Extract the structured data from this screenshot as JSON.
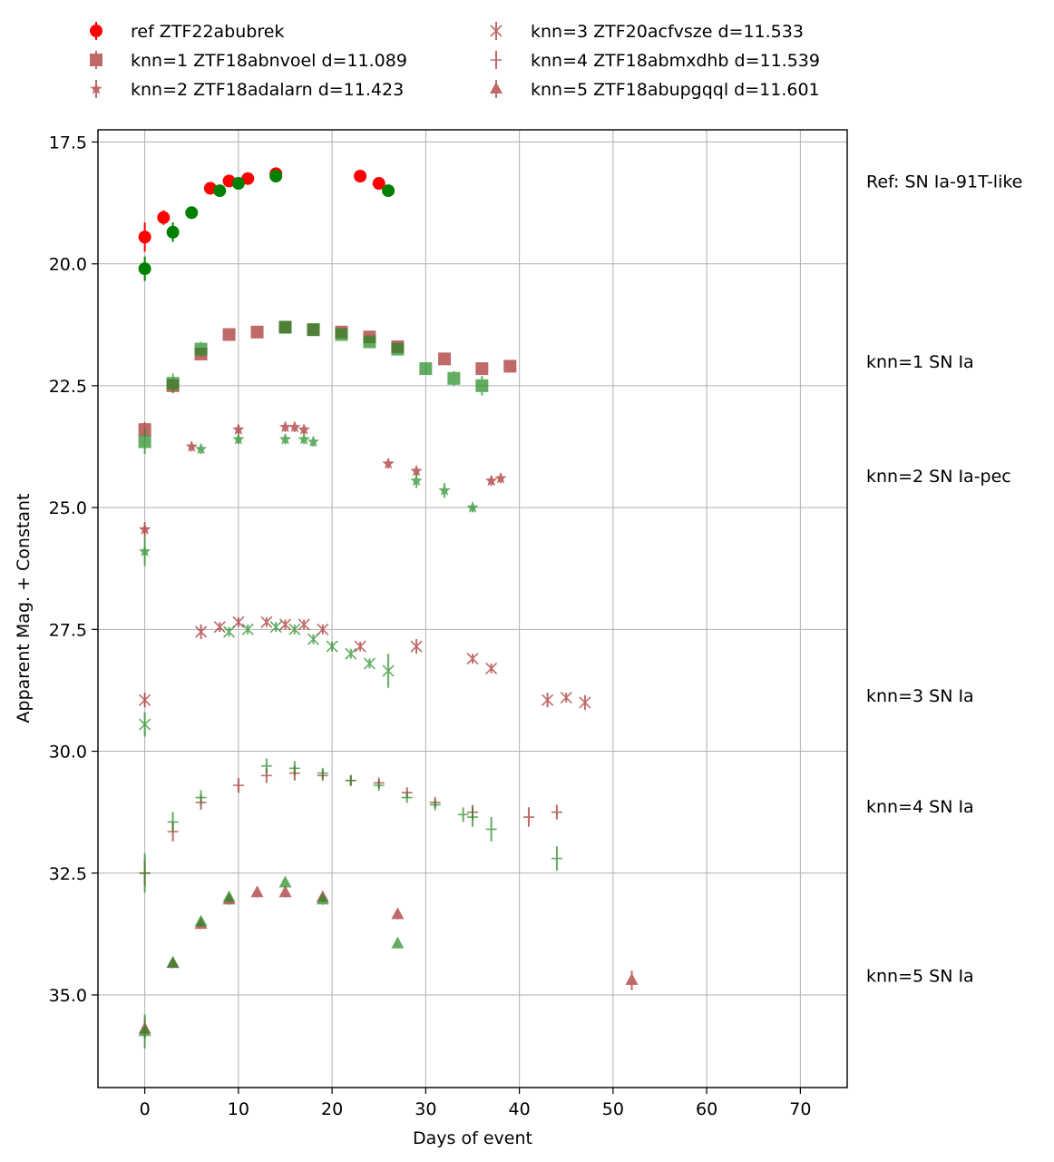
{
  "chart_data": {
    "type": "scatter",
    "title": "",
    "xlabel": "Days of event",
    "ylabel": "Apparent Mag. + Constant",
    "xlim": [
      -5,
      75
    ],
    "ylim": [
      36.9,
      17.25
    ],
    "y_inverted": true,
    "grid": true,
    "legend_position": "top, above plot, two columns",
    "xticks": [
      "0",
      "10",
      "20",
      "30",
      "40",
      "50",
      "60",
      "70"
    ],
    "yticks": [
      "17.5",
      "20.0",
      "22.5",
      "25.0",
      "27.5",
      "30.0",
      "32.5",
      "35.0"
    ],
    "colors": {
      "red_filter": "#ff0000",
      "green_filter": "#008000",
      "knn_red": "#a52a2a",
      "knn_green": "#228b22"
    },
    "legend": [
      {
        "label": "ref ZTF22abubrek",
        "marker": "circle"
      },
      {
        "label": "knn=1 ZTF18abnvoel d=11.089",
        "marker": "square"
      },
      {
        "label": "knn=2 ZTF18adalarn d=11.423",
        "marker": "star"
      },
      {
        "label": "knn=3 ZTF20acfvsze d=11.533",
        "marker": "x"
      },
      {
        "label": "knn=4 ZTF18abmxdhb d=11.539",
        "marker": "plus"
      },
      {
        "label": "knn=5 ZTF18abupgqql d=11.601",
        "marker": "triangle"
      }
    ],
    "side_labels": [
      {
        "text": "Ref: SN Ia-91T-like",
        "y": 18.3
      },
      {
        "text": "knn=1 SN Ia",
        "y": 22.0
      },
      {
        "text": "knn=2 SN Ia-pec",
        "y": 24.35
      },
      {
        "text": "knn=3 SN Ia",
        "y": 28.85
      },
      {
        "text": "knn=4 SN Ia",
        "y": 31.13
      },
      {
        "text": "knn=5 SN Ia",
        "y": 34.6
      }
    ],
    "series": [
      {
        "object": "ref",
        "filter": "r",
        "marker": "circle",
        "points": [
          [
            0,
            19.45,
            0.3
          ],
          [
            2,
            19.05,
            0.15
          ],
          [
            7,
            18.45,
            0.08
          ],
          [
            9,
            18.3,
            0.08
          ],
          [
            11,
            18.25,
            0.08
          ],
          [
            14,
            18.15,
            0.08
          ],
          [
            23,
            18.2,
            0.08
          ],
          [
            25,
            18.35,
            0.08
          ]
        ]
      },
      {
        "object": "ref",
        "filter": "g",
        "marker": "circle",
        "points": [
          [
            0,
            20.1,
            0.25
          ],
          [
            3,
            19.35,
            0.2
          ],
          [
            5,
            18.95,
            0.08
          ],
          [
            8,
            18.5,
            0.08
          ],
          [
            10,
            18.35,
            0.08
          ],
          [
            14,
            18.2,
            0.08
          ],
          [
            26,
            18.5,
            0.08
          ]
        ]
      },
      {
        "object": "knn1",
        "filter": "r",
        "marker": "square",
        "points": [
          [
            0,
            23.4,
            0.15
          ],
          [
            3,
            22.5,
            0.15
          ],
          [
            6,
            21.85,
            0.1
          ],
          [
            9,
            21.45,
            0.1
          ],
          [
            12,
            21.4,
            0.1
          ],
          [
            15,
            21.3,
            0.1
          ],
          [
            18,
            21.35,
            0.1
          ],
          [
            21,
            21.4,
            0.1
          ],
          [
            24,
            21.5,
            0.1
          ],
          [
            27,
            21.7,
            0.1
          ],
          [
            32,
            21.95,
            0.1
          ],
          [
            36,
            22.15,
            0.1
          ],
          [
            39,
            22.1,
            0.1
          ]
        ]
      },
      {
        "object": "knn1",
        "filter": "g",
        "marker": "square",
        "points": [
          [
            0,
            23.65,
            0.25
          ],
          [
            3,
            22.45,
            0.2
          ],
          [
            6,
            21.75,
            0.15
          ],
          [
            15,
            21.3,
            0.1
          ],
          [
            18,
            21.35,
            0.1
          ],
          [
            21,
            21.45,
            0.1
          ],
          [
            24,
            21.6,
            0.1
          ],
          [
            27,
            21.75,
            0.1
          ],
          [
            30,
            22.15,
            0.1
          ],
          [
            33,
            22.35,
            0.15
          ],
          [
            36,
            22.5,
            0.2
          ]
        ]
      },
      {
        "object": "knn2",
        "filter": "r",
        "marker": "star",
        "points": [
          [
            0,
            25.45,
            0.15
          ],
          [
            5,
            23.75,
            0.1
          ],
          [
            10,
            23.4,
            0.1
          ],
          [
            15,
            23.35,
            0.1
          ],
          [
            16,
            23.35,
            0.1
          ],
          [
            17,
            23.4,
            0.1
          ],
          [
            26,
            24.1,
            0.1
          ],
          [
            29,
            24.25,
            0.1
          ],
          [
            37,
            24.45,
            0.1
          ],
          [
            38,
            24.4,
            0.1
          ]
        ]
      },
      {
        "object": "knn2",
        "filter": "g",
        "marker": "star",
        "points": [
          [
            0,
            25.9,
            0.3
          ],
          [
            6,
            23.8,
            0.1
          ],
          [
            10,
            23.6,
            0.1
          ],
          [
            15,
            23.6,
            0.1
          ],
          [
            17,
            23.6,
            0.1
          ],
          [
            18,
            23.65,
            0.1
          ],
          [
            29,
            24.45,
            0.15
          ],
          [
            32,
            24.65,
            0.15
          ],
          [
            35,
            25.0,
            0.1
          ]
        ]
      },
      {
        "object": "knn3",
        "filter": "r",
        "marker": "x",
        "points": [
          [
            0,
            28.95,
            0.15
          ],
          [
            6,
            27.55,
            0.15
          ],
          [
            8,
            27.45,
            0.1
          ],
          [
            10,
            27.35,
            0.1
          ],
          [
            13,
            27.35,
            0.1
          ],
          [
            15,
            27.4,
            0.1
          ],
          [
            17,
            27.4,
            0.1
          ],
          [
            19,
            27.5,
            0.1
          ],
          [
            23,
            27.85,
            0.1
          ],
          [
            29,
            27.85,
            0.15
          ],
          [
            35,
            28.1,
            0.1
          ],
          [
            37,
            28.3,
            0.1
          ],
          [
            43,
            28.95,
            0.15
          ],
          [
            45,
            28.9,
            0.1
          ],
          [
            47,
            29.0,
            0.15
          ]
        ]
      },
      {
        "object": "knn3",
        "filter": "g",
        "marker": "x",
        "points": [
          [
            0,
            29.45,
            0.25
          ],
          [
            9,
            27.55,
            0.1
          ],
          [
            11,
            27.5,
            0.1
          ],
          [
            14,
            27.45,
            0.1
          ],
          [
            16,
            27.5,
            0.1
          ],
          [
            18,
            27.7,
            0.1
          ],
          [
            20,
            27.85,
            0.1
          ],
          [
            22,
            28.0,
            0.1
          ],
          [
            24,
            28.2,
            0.1
          ],
          [
            26,
            28.35,
            0.35
          ]
        ]
      },
      {
        "object": "knn4",
        "filter": "r",
        "marker": "plus",
        "points": [
          [
            0,
            32.5,
            0.25
          ],
          [
            3,
            31.65,
            0.2
          ],
          [
            6,
            31.05,
            0.15
          ],
          [
            10,
            30.7,
            0.15
          ],
          [
            13,
            30.5,
            0.15
          ],
          [
            16,
            30.45,
            0.15
          ],
          [
            19,
            30.5,
            0.1
          ],
          [
            22,
            30.6,
            0.1
          ],
          [
            25,
            30.65,
            0.1
          ],
          [
            28,
            30.85,
            0.1
          ],
          [
            31,
            31.05,
            0.1
          ],
          [
            35,
            31.25,
            0.15
          ],
          [
            41,
            31.35,
            0.2
          ],
          [
            44,
            31.25,
            0.15
          ]
        ]
      },
      {
        "object": "knn4",
        "filter": "g",
        "marker": "plus",
        "points": [
          [
            0,
            32.5,
            0.4
          ],
          [
            3,
            31.45,
            0.2
          ],
          [
            6,
            30.95,
            0.15
          ],
          [
            13,
            30.3,
            0.15
          ],
          [
            16,
            30.35,
            0.15
          ],
          [
            19,
            30.45,
            0.1
          ],
          [
            22,
            30.6,
            0.1
          ],
          [
            25,
            30.7,
            0.1
          ],
          [
            28,
            30.95,
            0.1
          ],
          [
            31,
            31.1,
            0.1
          ],
          [
            34,
            31.3,
            0.15
          ],
          [
            35,
            31.35,
            0.2
          ],
          [
            37,
            31.6,
            0.25
          ],
          [
            44,
            32.2,
            0.25
          ]
        ]
      },
      {
        "object": "knn5",
        "filter": "r",
        "marker": "triangle",
        "points": [
          [
            0,
            35.7,
            0.2
          ],
          [
            3,
            34.35,
            0.1
          ],
          [
            6,
            33.55,
            0.1
          ],
          [
            9,
            33.05,
            0.1
          ],
          [
            12,
            32.9,
            0.1
          ],
          [
            15,
            32.9,
            0.1
          ],
          [
            19,
            33.0,
            0.1
          ],
          [
            27,
            33.35,
            0.1
          ],
          [
            52,
            34.7,
            0.2
          ]
        ]
      },
      {
        "object": "knn5",
        "filter": "g",
        "marker": "triangle",
        "points": [
          [
            0,
            35.75,
            0.35
          ],
          [
            3,
            34.35,
            0.1
          ],
          [
            6,
            33.5,
            0.1
          ],
          [
            9,
            33.0,
            0.1
          ],
          [
            15,
            32.7,
            0.1
          ],
          [
            19,
            33.05,
            0.1
          ],
          [
            27,
            33.95,
            0.1
          ]
        ]
      }
    ]
  }
}
